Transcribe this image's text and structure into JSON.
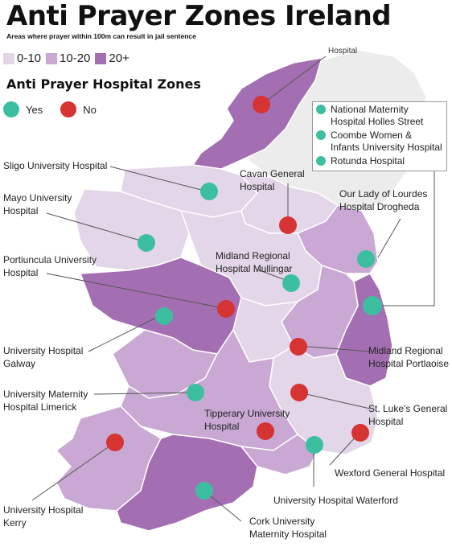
{
  "title": "Anti Prayer Zones Ireland",
  "subtitle": "Areas where prayer within 100m can result in jail sentence",
  "scale": [
    {
      "label": "0-10",
      "color": "#e3d6e8"
    },
    {
      "label": "10-20",
      "color": "#c9a8d4"
    },
    {
      "label": "20+",
      "color": "#a46fb2"
    }
  ],
  "zones_heading": "Anti Prayer Hospital Zones",
  "legend": {
    "yes_label": "Yes",
    "no_label": "No",
    "yes_color": "#3cbfa0",
    "no_color": "#d63333"
  },
  "cutoff_text": "Hospital",
  "dublin_box": [
    {
      "label": "National Maternity Hospital Holles Street",
      "status": "yes"
    },
    {
      "label": "Coombe Women & Infants University Hospital",
      "status": "yes"
    },
    {
      "label": "Rotunda Hospital",
      "status": "yes"
    }
  ],
  "hospitals": [
    {
      "name": "Letterkenny Hospital",
      "status": "no"
    },
    {
      "name": "Sligo University Hospital",
      "status": "yes"
    },
    {
      "name": "Cavan General Hospital",
      "status": "no"
    },
    {
      "name": "Mayo University Hospital",
      "status": "yes"
    },
    {
      "name": "Our Lady of Lourdes Hospital Drogheda",
      "status": "yes"
    },
    {
      "name": "Midland Regional Hospital Mullingar",
      "status": "yes"
    },
    {
      "name": "Portiuncula University Hospital",
      "status": "no"
    },
    {
      "name": "Dublin hospitals",
      "status": "yes"
    },
    {
      "name": "University Hospital Galway",
      "status": "yes"
    },
    {
      "name": "Midland Regional Hospital Portlaoise",
      "status": "no"
    },
    {
      "name": "University Maternity Hospital Limerick",
      "status": "yes"
    },
    {
      "name": "St. Luke's General Hospital",
      "status": "no"
    },
    {
      "name": "Tipperary University Hospital",
      "status": "no"
    },
    {
      "name": "Wexford General Hospital",
      "status": "no"
    },
    {
      "name": "University Hospital Kerry",
      "status": "no"
    },
    {
      "name": "University Hospital Waterford",
      "status": "yes"
    },
    {
      "name": "Cork University Maternity Hospital",
      "status": "yes"
    }
  ],
  "labels": {
    "sligo": "Sligo University Hospital",
    "mayo": [
      "Mayo University",
      "Hospital"
    ],
    "portiuncula": [
      "Portiuncula University",
      "Hospital"
    ],
    "cavan": [
      "Cavan General",
      "Hospital"
    ],
    "drogheda": [
      "Our Lady of Lourdes",
      "Hospital Drogheda"
    ],
    "mullingar": [
      "Midland Regional",
      "Hospital Mullingar"
    ],
    "galway": [
      "University Hospital",
      "Galway"
    ],
    "limerick": [
      "University Maternity",
      "Hospital Limerick"
    ],
    "portlaoise": [
      "Midland Regional",
      "Hospital Portlaoise"
    ],
    "tipperary": [
      "Tipperary University",
      "Hospital"
    ],
    "stlukes": [
      "St. Luke's General",
      "Hospital"
    ],
    "wexford": "Wexford General Hospital",
    "waterford": "University Hospital Waterford",
    "kerry": [
      "University Hospital",
      "Kerry"
    ],
    "cork": [
      "Cork University",
      "Maternity Hospital"
    ]
  }
}
